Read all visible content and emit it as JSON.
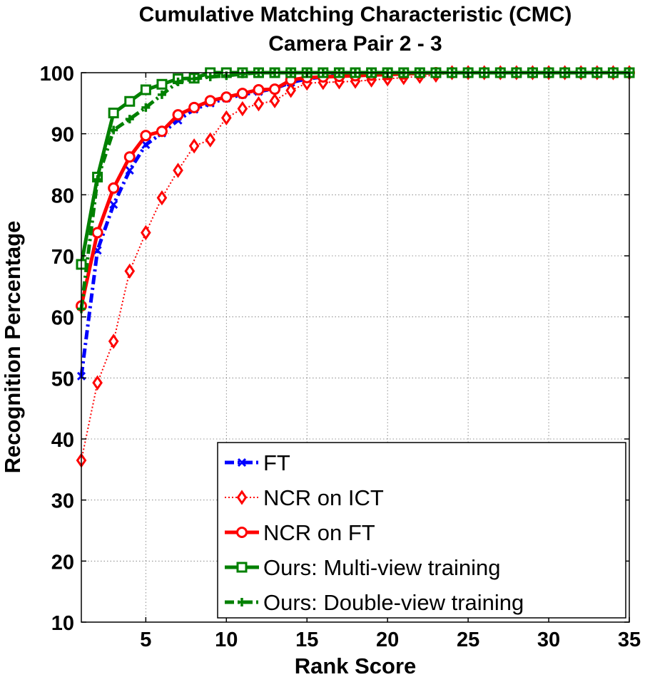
{
  "chart_data": {
    "type": "line",
    "title": "Cumulative Matching Characteristic (CMC)",
    "subtitle": "Camera Pair 2 - 3",
    "xlabel": "Rank Score",
    "ylabel": "Recognition Percentage",
    "xlim": [
      1,
      35
    ],
    "ylim": [
      10,
      100
    ],
    "xticks": [
      5,
      10,
      15,
      20,
      25,
      30,
      35
    ],
    "yticks": [
      10,
      20,
      30,
      40,
      50,
      60,
      70,
      80,
      90,
      100
    ],
    "grid": true,
    "legend_position": "bottom-right",
    "x": [
      1,
      2,
      3,
      4,
      5,
      6,
      7,
      8,
      9,
      10,
      11,
      12,
      13,
      14,
      15,
      16,
      17,
      18,
      19,
      20,
      21,
      22,
      23,
      24,
      25,
      26,
      27,
      28,
      29,
      30,
      31,
      32,
      33,
      34,
      35
    ],
    "series": [
      {
        "name": "FT",
        "color": "#0000ff",
        "line_style": "dashdot",
        "marker": "x",
        "values": [
          50.3,
          70.9,
          78.4,
          84.0,
          88.2,
          90.1,
          92.2,
          94.0,
          95.0,
          95.8,
          96.4,
          96.9,
          97.4,
          98.4,
          99.0,
          99.3,
          99.5,
          99.6,
          99.7,
          99.8,
          99.9,
          99.9,
          100,
          100,
          100,
          100,
          100,
          100,
          100,
          100,
          100,
          100,
          100,
          100,
          100
        ]
      },
      {
        "name": "NCR on ICT",
        "color": "#ff0000",
        "line_style": "dotted",
        "marker": "diamond",
        "values": [
          36.5,
          49.2,
          56.0,
          67.5,
          73.8,
          79.5,
          84.0,
          88.0,
          89.0,
          92.6,
          94.1,
          94.9,
          95.4,
          97.1,
          98.3,
          98.4,
          98.5,
          98.6,
          98.8,
          99.0,
          99.2,
          99.4,
          99.6,
          100,
          100,
          100,
          100,
          100,
          100,
          100,
          100,
          100,
          100,
          100,
          100
        ]
      },
      {
        "name": "NCR on FT",
        "color": "#ff0000",
        "line_style": "solid",
        "marker": "circle",
        "values": [
          61.8,
          73.8,
          81.1,
          86.2,
          89.7,
          90.4,
          93.1,
          94.3,
          95.4,
          96.0,
          96.6,
          97.2,
          97.3,
          98.8,
          99.2,
          99.3,
          99.4,
          99.5,
          99.6,
          99.7,
          99.8,
          99.9,
          100,
          100,
          100,
          100,
          100,
          100,
          100,
          100,
          100,
          100,
          100,
          100,
          100
        ]
      },
      {
        "name": "Ours: Multi-view training",
        "color": "#008000",
        "line_style": "solid",
        "marker": "square",
        "values": [
          68.6,
          82.9,
          93.4,
          95.3,
          97.2,
          98.1,
          99.0,
          99.1,
          100,
          100,
          100,
          100,
          100,
          100,
          100,
          100,
          100,
          100,
          100,
          100,
          100,
          100,
          100,
          100,
          100,
          100,
          100,
          100,
          100,
          100,
          100,
          100,
          100,
          100,
          100
        ]
      },
      {
        "name": "Ours: Double-view training",
        "color": "#008000",
        "line_style": "dashdot",
        "marker": "plus",
        "values": [
          61.3,
          82.5,
          90.6,
          92.4,
          94.3,
          96.4,
          98.5,
          99.0,
          99.3,
          99.5,
          99.8,
          100,
          100,
          100,
          100,
          100,
          100,
          100,
          100,
          100,
          100,
          100,
          100,
          100,
          100,
          100,
          100,
          100,
          100,
          100,
          100,
          100,
          100,
          100,
          100
        ]
      }
    ]
  }
}
